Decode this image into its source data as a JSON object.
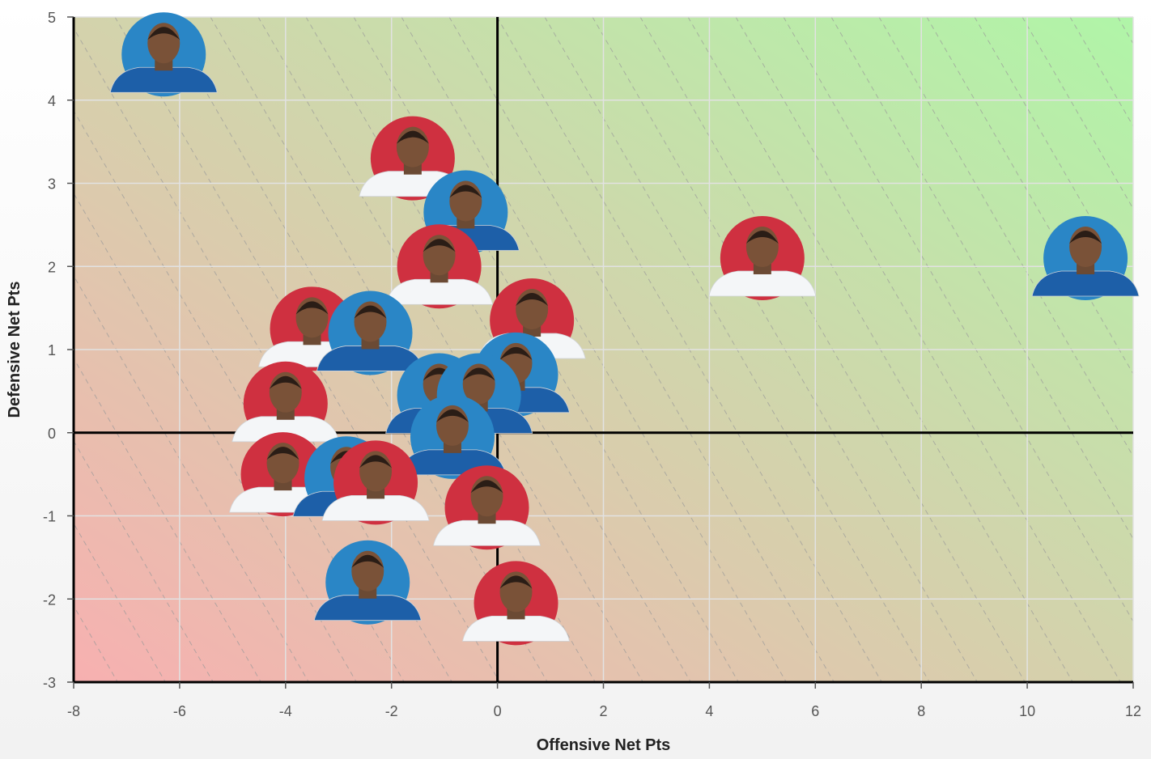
{
  "chart_data": {
    "type": "scatter",
    "title": "",
    "xlabel": "Offensive Net Pts",
    "ylabel": "Defensive Net Pts",
    "xlim": [
      -8,
      12
    ],
    "ylim": [
      -3,
      5
    ],
    "x_ticks": [
      -8,
      -6,
      -4,
      -2,
      0,
      2,
      4,
      6,
      8,
      10,
      12
    ],
    "y_ticks": [
      -3,
      -2,
      -1,
      0,
      1,
      2,
      3,
      4,
      5
    ],
    "grid": true,
    "background_gradient": {
      "bottom_left": "#f7b0b0",
      "top_right": "#b0f5a8"
    },
    "team_colors": {
      "blue": "#2a86c6",
      "red": "#cf3040"
    },
    "points": [
      {
        "x": -6.3,
        "y": 4.55,
        "team": "blue"
      },
      {
        "x": -1.6,
        "y": 3.3,
        "team": "red"
      },
      {
        "x": -0.6,
        "y": 2.65,
        "team": "blue"
      },
      {
        "x": -1.1,
        "y": 2.0,
        "team": "red"
      },
      {
        "x": -3.5,
        "y": 1.25,
        "team": "red"
      },
      {
        "x": -2.4,
        "y": 1.2,
        "team": "blue"
      },
      {
        "x": 0.65,
        "y": 1.35,
        "team": "red"
      },
      {
        "x": -1.1,
        "y": 0.45,
        "team": "blue"
      },
      {
        "x": 0.35,
        "y": 0.7,
        "team": "blue"
      },
      {
        "x": -0.35,
        "y": 0.45,
        "team": "blue"
      },
      {
        "x": -4.0,
        "y": 0.35,
        "team": "red"
      },
      {
        "x": -0.85,
        "y": -0.05,
        "team": "blue"
      },
      {
        "x": -4.05,
        "y": -0.5,
        "team": "red"
      },
      {
        "x": -2.85,
        "y": -0.55,
        "team": "blue"
      },
      {
        "x": -2.3,
        "y": -0.6,
        "team": "red"
      },
      {
        "x": -0.2,
        "y": -0.9,
        "team": "red"
      },
      {
        "x": -2.45,
        "y": -1.8,
        "team": "blue"
      },
      {
        "x": 0.35,
        "y": -2.05,
        "team": "red"
      },
      {
        "x": 5.0,
        "y": 2.1,
        "team": "red"
      },
      {
        "x": 11.1,
        "y": 2.1,
        "team": "blue"
      }
    ]
  }
}
